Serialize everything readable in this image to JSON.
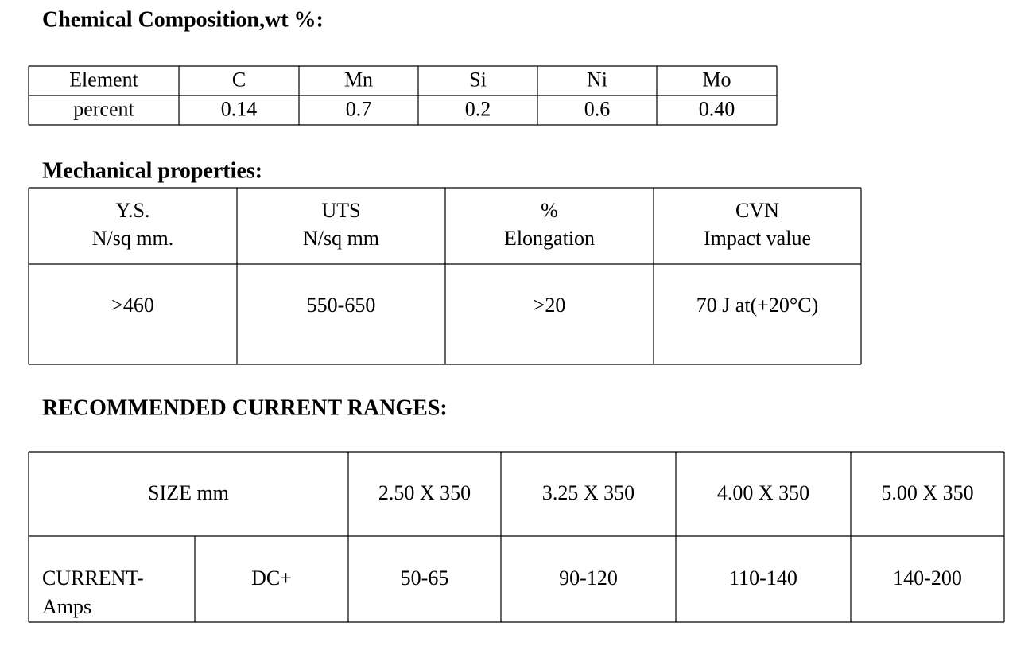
{
  "chemical": {
    "title": "Chemical Composition,wt %:",
    "rows": [
      [
        "Element",
        "C",
        "Mn",
        "Si",
        "Ni",
        "Mo"
      ],
      [
        "percent",
        "0.14",
        "0.7",
        "0.2",
        "0.6",
        "0.40"
      ]
    ]
  },
  "mechanical": {
    "title": "Mechanical properties:",
    "header": [
      [
        "Y.S.",
        "N/sq mm."
      ],
      [
        "UTS",
        "N/sq mm"
      ],
      [
        "%",
        "Elongation"
      ],
      [
        "CVN",
        "Impact value"
      ]
    ],
    "values": [
      ">460",
      "550-650",
      ">20",
      "70 J at(+20°C)"
    ]
  },
  "current": {
    "title": "RECOMMENDED CURRENT RANGES:",
    "size_label": "SIZE mm",
    "sizes": [
      "2.50 X 350",
      "3.25 X 350",
      "4.00 X 350",
      "5.00 X 350"
    ],
    "current_label": [
      "CURRENT-",
      "Amps"
    ],
    "polarity": "DC+",
    "ranges": [
      "50-65",
      "90-120",
      "110-140",
      "140-200"
    ]
  }
}
